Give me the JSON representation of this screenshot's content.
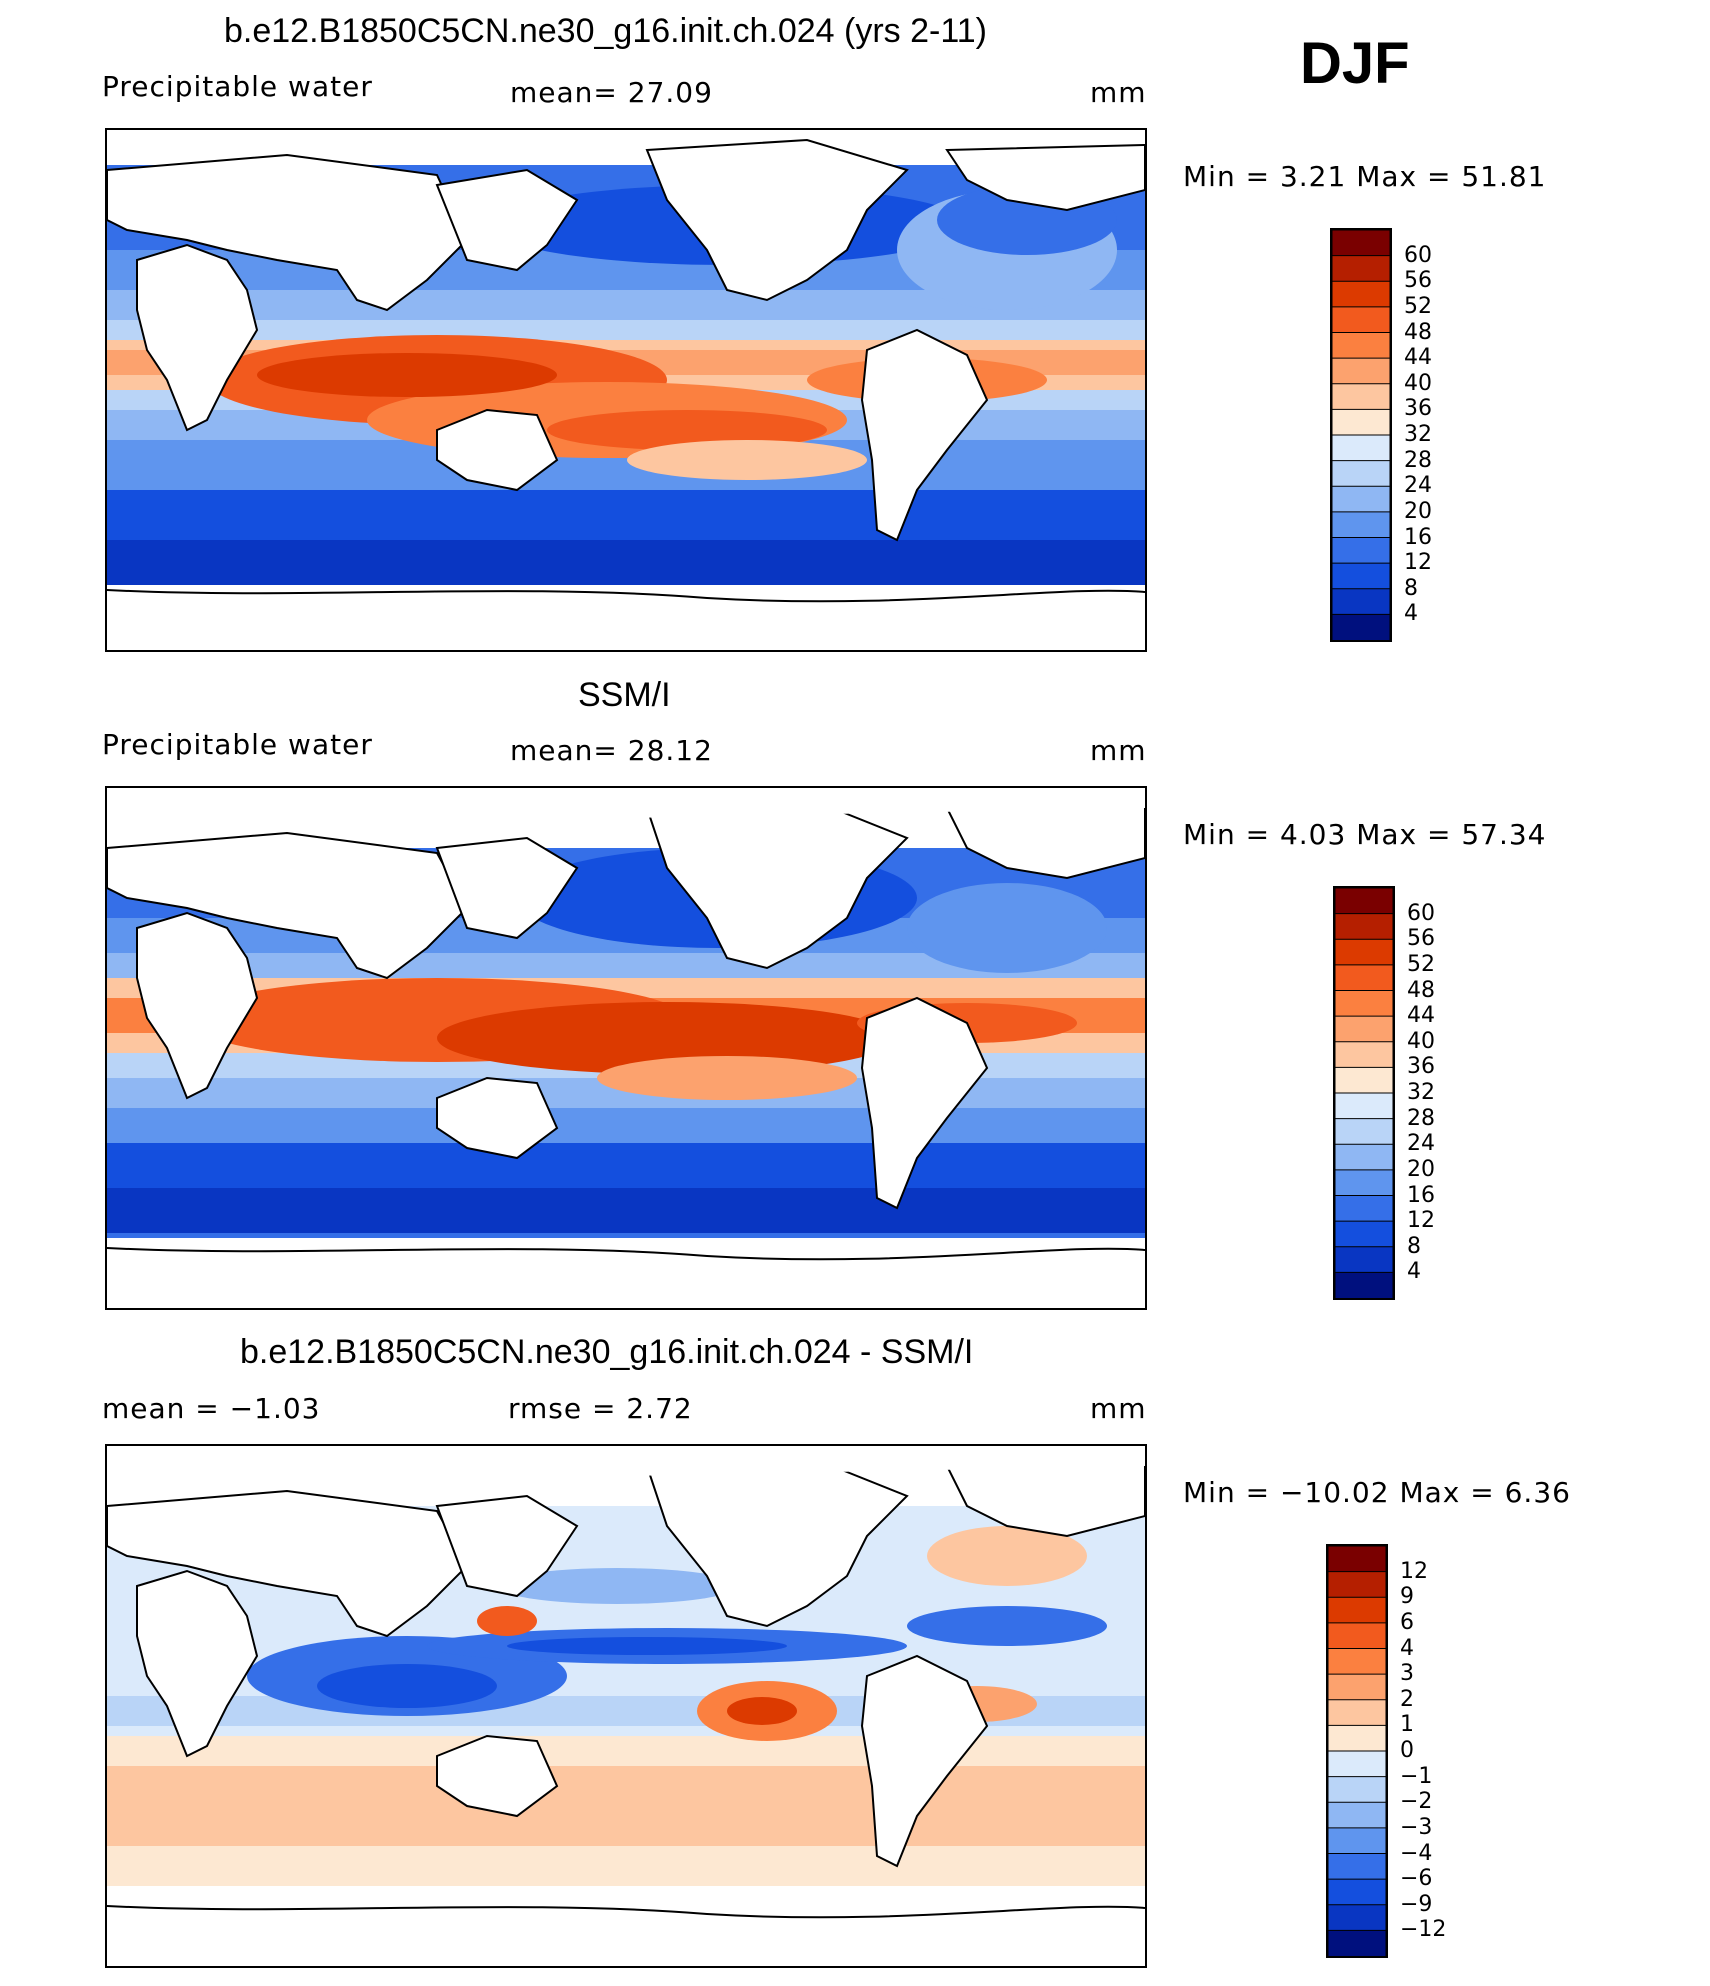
{
  "season": "DJF",
  "panels": [
    {
      "title": "b.e12.B1850C5CN.ne30_g16.init.ch.024 (yrs 2-11)",
      "left_text": "Precipitable  water",
      "mid_text": "mean=   27.09",
      "units": "mm",
      "minmax": "Min  =     3.21  Max  =    51.81",
      "colorbar": {
        "labels": [
          "60",
          "56",
          "52",
          "48",
          "44",
          "40",
          "36",
          "32",
          "28",
          "24",
          "20",
          "16",
          "12",
          "8",
          "4"
        ],
        "colors": [
          "#7a0000",
          "#b51f00",
          "#dc3a00",
          "#f25a1e",
          "#fb8040",
          "#fca26e",
          "#fdc6a0",
          "#fde8d2",
          "#dbeafb",
          "#b9d4f7",
          "#8fb7f3",
          "#5f95ee",
          "#356fe8",
          "#144fde",
          "#0936c2",
          "#00107e"
        ]
      }
    },
    {
      "title": "SSM/I",
      "left_text": "Precipitable  water",
      "mid_text": "mean=   28.12",
      "units": "mm",
      "minmax": "Min  =     4.03  Max  =    57.34",
      "colorbar": {
        "labels": [
          "60",
          "56",
          "52",
          "48",
          "44",
          "40",
          "36",
          "32",
          "28",
          "24",
          "20",
          "16",
          "12",
          "8",
          "4"
        ],
        "colors": [
          "#7a0000",
          "#b51f00",
          "#dc3a00",
          "#f25a1e",
          "#fb8040",
          "#fca26e",
          "#fdc6a0",
          "#fde8d2",
          "#dbeafb",
          "#b9d4f7",
          "#8fb7f3",
          "#5f95ee",
          "#356fe8",
          "#144fde",
          "#0936c2",
          "#00107e"
        ]
      }
    },
    {
      "title": "b.e12.B1850C5CN.ne30_g16.init.ch.024 - SSM/I",
      "left_text": "mean  =    −1.03",
      "mid_text": "rmse  =     2.72",
      "units": "mm",
      "minmax": "Min  =  −10.02  Max  =     6.36",
      "colorbar": {
        "labels": [
          "12",
          "9",
          "6",
          "4",
          "3",
          "2",
          "1",
          "0",
          "−1",
          "−2",
          "−3",
          "−4",
          "−6",
          "−9",
          "−12"
        ],
        "colors": [
          "#7a0000",
          "#b51f00",
          "#dc3a00",
          "#f25a1e",
          "#fb8040",
          "#fca26e",
          "#fdc6a0",
          "#fde8d2",
          "#dbeafb",
          "#b9d4f7",
          "#8fb7f3",
          "#5f95ee",
          "#356fe8",
          "#144fde",
          "#0936c2",
          "#00107e"
        ]
      }
    }
  ]
}
